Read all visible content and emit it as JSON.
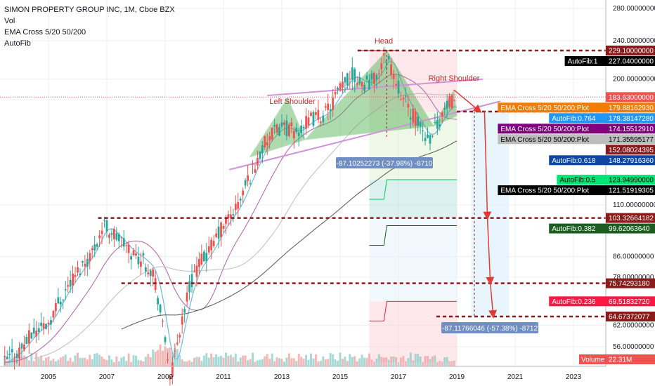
{
  "legend": {
    "symbol": "SIMON PROPERTY GROUP INC, 1M, Cboe BZX",
    "volume": "Vol",
    "ema": "EMA Cross 5/20 50/200",
    "fib": "AutoFib"
  },
  "annotations": {
    "head": "Head",
    "left_shoulder": "Left Shoulder",
    "right_shoulder": "Right Shoulder",
    "measure_1": "-87.10252273 (-37.98%) -8710",
    "measure_2": "-87.11766046 (-57.38%) -8712"
  },
  "chart_data": {
    "type": "line",
    "title": "SIMON PROPERTY GROUP INC, 1M, Cboe BZX",
    "x_range": [
      2003.5,
      2025.0
    ],
    "y_scale": "log",
    "y_range": [
      52,
      300
    ],
    "grid": true,
    "xticks": [
      "2005",
      "2007",
      "2009",
      "2011",
      "2013",
      "2015",
      "2017",
      "2019",
      "2021",
      "2023"
    ],
    "yticks": [
      {
        "v": 280,
        "label": "280.00000000"
      },
      {
        "v": 240,
        "label": "240.00000000"
      },
      {
        "v": 200,
        "label": "200.00000000"
      },
      {
        "v": 110,
        "label": "110.00000000"
      },
      {
        "v": 86,
        "label": "86.00000000"
      },
      {
        "v": 78,
        "label": "78.00000000"
      },
      {
        "v": 62,
        "label": "62.00000000"
      },
      {
        "v": 56,
        "label": "56.00000000"
      }
    ],
    "price_series": {
      "x": [
        2003.5,
        2004.0,
        2004.5,
        2005.0,
        2005.5,
        2006.0,
        2006.5,
        2006.9,
        2007.3,
        2007.8,
        2008.2,
        2008.6,
        2008.9,
        2009.2,
        2009.6,
        2010.0,
        2010.5,
        2011.0,
        2011.5,
        2012.0,
        2012.5,
        2013.0,
        2013.5,
        2014.0,
        2014.5,
        2015.0,
        2015.4,
        2015.8,
        2016.2,
        2016.6,
        2016.9,
        2017.2,
        2017.6,
        2018.0,
        2018.4,
        2018.8,
        2019.0
      ],
      "close": [
        52,
        55,
        60,
        63,
        72,
        80,
        88,
        100,
        95,
        88,
        85,
        80,
        62,
        48,
        65,
        80,
        88,
        100,
        110,
        130,
        150,
        160,
        155,
        165,
        170,
        190,
        205,
        195,
        200,
        225,
        200,
        180,
        165,
        150,
        165,
        180,
        170
      ]
    },
    "levels": [
      {
        "v": 229.1,
        "label": "229.10000000",
        "color": "#8b1a1a",
        "dashed": true
      },
      {
        "v": 227.04,
        "label": "AutoFib:1",
        "value": "227.04000000",
        "color": "#000000"
      },
      {
        "v": 183.63,
        "label": "183.63000000",
        "color": "#ef5350"
      },
      {
        "v": 179.88,
        "label": "EMA Cross 5/20 50/200:Plot",
        "value": "179.88162930",
        "color": "#f57c00"
      },
      {
        "v": 178.38,
        "label": "AutoFib:0.764",
        "value": "178.38147280",
        "color": "#2196f3"
      },
      {
        "v": 174.16,
        "label": "EMA Cross 5/20 50/200:Plot",
        "value": "174.15512910",
        "color": "#800080"
      },
      {
        "v": 171.36,
        "label": "EMA Cross 5/20 50/200:Plot",
        "value": "171.35595177",
        "color": "#bdbdbd"
      },
      {
        "v": 152.08,
        "label": "152.08024395",
        "color": "#8b1a1a"
      },
      {
        "v": 148.28,
        "label": "AutoFib:0.618",
        "value": "148.27916360",
        "color": "#0d47a1"
      },
      {
        "v": 123.95,
        "label": "AutoFib:0.5",
        "value": "123.94990000",
        "color": "#00e676"
      },
      {
        "v": 121.52,
        "label": "EMA Cross 5/20 50/200:Plot",
        "value": "121.51919305",
        "color": "#000000"
      },
      {
        "v": 103.33,
        "label": "103.32664182",
        "color": "#8b1a1a",
        "dashed": true
      },
      {
        "v": 99.62,
        "label": "AutoFib:0.382",
        "value": "99.62063640",
        "color": "#1b5e20"
      },
      {
        "v": 75.74,
        "label": "75.74293180",
        "color": "#8b1a1a",
        "dashed": true
      },
      {
        "v": 69.52,
        "label": "AutoFib:0.236",
        "value": "69.51832720",
        "color": "#ff1744"
      },
      {
        "v": 64.67,
        "label": "64.67372077",
        "color": "#8b1a1a",
        "dashed": true
      }
    ],
    "volume_label": "Volume",
    "volume_value": "22.31M"
  },
  "colors": {
    "up": "#26a69a",
    "down": "#ef5350",
    "grid": "#eceff1",
    "axis_text": "#131722"
  }
}
